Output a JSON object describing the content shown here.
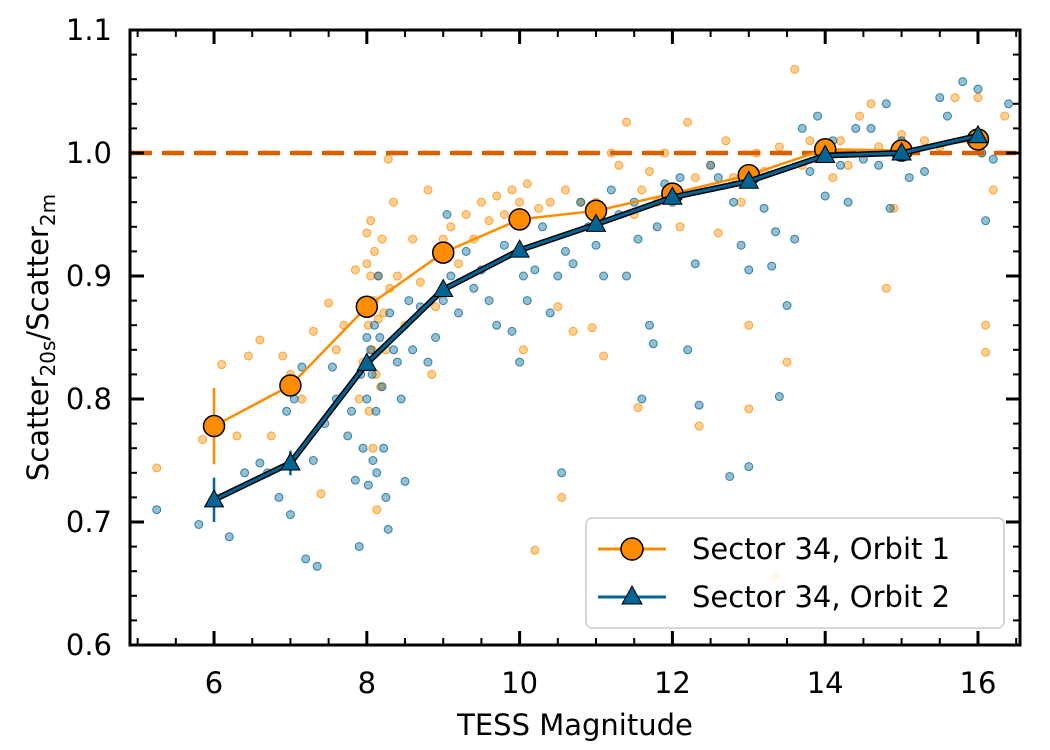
{
  "chart_data": {
    "type": "scatter",
    "xlabel": "TESS Magnitude",
    "ylabel": {
      "base1": "Scatter",
      "sub1": "20s",
      "sep": "/",
      "base2": "Scatter",
      "sub2": "2m"
    },
    "xlim": [
      4.9,
      16.55
    ],
    "ylim": [
      0.6,
      1.1
    ],
    "xticks": [
      6,
      8,
      10,
      12,
      14,
      16
    ],
    "yticks": [
      0.6,
      0.7,
      0.8,
      0.9,
      1.0,
      1.1
    ],
    "xtick_labels": [
      "6",
      "8",
      "10",
      "12",
      "14",
      "16"
    ],
    "ytick_labels": [
      "0.6",
      "0.7",
      "0.8",
      "0.9",
      "1.0",
      "1.1"
    ],
    "reference_line": {
      "y": 1.0,
      "style": "dashed",
      "color": "#d95f02"
    },
    "legend_position": "lower-right",
    "series": [
      {
        "name": "Sector 34, Orbit 1",
        "marker": "circle",
        "color": "#ff8c00",
        "x": [
          6,
          7,
          8,
          9,
          10,
          11,
          12,
          13,
          14,
          15,
          16
        ],
        "y": [
          0.778,
          0.811,
          0.875,
          0.919,
          0.946,
          0.953,
          0.967,
          0.982,
          1.003,
          1.002,
          1.011
        ],
        "yerr": [
          0.031,
          0.008,
          0.006,
          0.005,
          0.005,
          0.005,
          0.004,
          0.004,
          0.004,
          0.004,
          0.004
        ]
      },
      {
        "name": "Sector 34, Orbit 2",
        "marker": "triangle",
        "color": "#006494",
        "x": [
          6,
          7,
          8,
          9,
          10,
          11,
          12,
          13,
          14,
          15,
          16
        ],
        "y": [
          0.718,
          0.748,
          0.829,
          0.889,
          0.921,
          0.942,
          0.964,
          0.977,
          0.998,
          1.0,
          1.014
        ],
        "yerr": [
          0.018,
          0.01,
          0.006,
          0.005,
          0.005,
          0.005,
          0.004,
          0.004,
          0.004,
          0.004,
          0.004
        ]
      }
    ],
    "scatter_points": {
      "orbit1": [
        [
          5.25,
          0.744
        ],
        [
          5.85,
          0.767
        ],
        [
          6.1,
          0.828
        ],
        [
          6.3,
          0.77
        ],
        [
          6.45,
          0.835
        ],
        [
          6.6,
          0.848
        ],
        [
          6.75,
          0.77
        ],
        [
          6.9,
          0.835
        ],
        [
          7.0,
          0.82
        ],
        [
          7.15,
          0.8
        ],
        [
          7.3,
          0.855
        ],
        [
          7.4,
          0.723
        ],
        [
          7.5,
          0.878
        ],
        [
          7.6,
          0.84
        ],
        [
          7.7,
          0.86
        ],
        [
          7.85,
          0.905
        ],
        [
          7.9,
          0.8
        ],
        [
          7.95,
          0.83
        ],
        [
          8.0,
          0.935
        ],
        [
          8.0,
          0.91
        ],
        [
          8.02,
          0.86
        ],
        [
          8.03,
          0.79
        ],
        [
          8.05,
          0.945
        ],
        [
          8.05,
          0.9
        ],
        [
          8.07,
          0.84
        ],
        [
          8.08,
          0.76
        ],
        [
          8.1,
          0.92
        ],
        [
          8.1,
          0.88
        ],
        [
          8.12,
          0.82
        ],
        [
          8.13,
          0.71
        ],
        [
          8.15,
          0.9
        ],
        [
          8.15,
          0.865
        ],
        [
          8.18,
          0.81
        ],
        [
          8.2,
          0.93
        ],
        [
          8.22,
          0.87
        ],
        [
          8.25,
          0.84
        ],
        [
          8.28,
          0.995
        ],
        [
          8.3,
          0.89
        ],
        [
          8.35,
          0.96
        ],
        [
          8.4,
          0.9
        ],
        [
          8.5,
          0.86
        ],
        [
          8.6,
          0.93
        ],
        [
          8.7,
          0.895
        ],
        [
          8.8,
          0.97
        ],
        [
          8.85,
          0.82
        ],
        [
          8.9,
          0.875
        ],
        [
          9.0,
          0.93
        ],
        [
          9.1,
          0.94
        ],
        [
          9.2,
          0.91
        ],
        [
          9.3,
          0.95
        ],
        [
          9.4,
          0.93
        ],
        [
          9.5,
          0.96
        ],
        [
          9.6,
          0.945
        ],
        [
          9.7,
          0.965
        ],
        [
          9.8,
          0.95
        ],
        [
          9.9,
          0.97
        ],
        [
          10.0,
          0.96
        ],
        [
          10.05,
          0.84
        ],
        [
          10.1,
          0.975
        ],
        [
          10.2,
          0.677
        ],
        [
          10.25,
          0.955
        ],
        [
          10.4,
          0.96
        ],
        [
          10.5,
          0.875
        ],
        [
          10.55,
          0.72
        ],
        [
          10.6,
          0.97
        ],
        [
          10.7,
          0.855
        ],
        [
          10.8,
          0.96
        ],
        [
          10.95,
          0.858
        ],
        [
          11.0,
          0.96
        ],
        [
          11.1,
          0.835
        ],
        [
          11.2,
          1.0
        ],
        [
          11.3,
          0.99
        ],
        [
          11.4,
          1.025
        ],
        [
          11.5,
          0.95
        ],
        [
          11.55,
          0.793
        ],
        [
          11.6,
          0.97
        ],
        [
          11.7,
          0.985
        ],
        [
          11.8,
          0.96
        ],
        [
          11.9,
          1.0
        ],
        [
          12.0,
          0.97
        ],
        [
          12.1,
          0.94
        ],
        [
          12.2,
          1.025
        ],
        [
          12.3,
          0.98
        ],
        [
          12.35,
          0.778
        ],
        [
          12.5,
          0.99
        ],
        [
          12.6,
          0.935
        ],
        [
          12.7,
          1.01
        ],
        [
          12.8,
          0.98
        ],
        [
          12.9,
          0.96
        ],
        [
          13.0,
          0.792
        ],
        [
          13.0,
          0.86
        ],
        [
          13.1,
          1.0
        ],
        [
          13.2,
          0.985
        ],
        [
          13.35,
          0.655
        ],
        [
          13.4,
          1.005
        ],
        [
          13.5,
          0.83
        ],
        [
          13.6,
          1.068
        ],
        [
          13.7,
          0.99
        ],
        [
          13.8,
          1.01
        ],
        [
          14.0,
          1.0
        ],
        [
          14.1,
          0.98
        ],
        [
          14.2,
          1.01
        ],
        [
          14.3,
          0.99
        ],
        [
          14.45,
          1.03
        ],
        [
          14.5,
          1.0
        ],
        [
          14.6,
          1.04
        ],
        [
          14.7,
          1.005
        ],
        [
          14.8,
          0.89
        ],
        [
          14.9,
          0.955
        ],
        [
          15.0,
          1.015
        ],
        [
          15.1,
          1.0
        ],
        [
          15.3,
          1.01
        ],
        [
          15.5,
          1.005
        ],
        [
          15.7,
          1.045
        ],
        [
          15.9,
          1.01
        ],
        [
          16.0,
          1.045
        ],
        [
          16.05,
          1.0
        ],
        [
          16.1,
          0.86
        ],
        [
          16.1,
          0.838
        ],
        [
          16.2,
          0.97
        ],
        [
          16.35,
          1.03
        ]
      ],
      "orbit2": [
        [
          5.25,
          0.71
        ],
        [
          5.8,
          0.698
        ],
        [
          6.2,
          0.688
        ],
        [
          6.4,
          0.74
        ],
        [
          6.6,
          0.748
        ],
        [
          6.7,
          0.74
        ],
        [
          6.85,
          0.72
        ],
        [
          6.95,
          0.79
        ],
        [
          7.0,
          0.706
        ],
        [
          7.05,
          0.8
        ],
        [
          7.15,
          0.826
        ],
        [
          7.2,
          0.67
        ],
        [
          7.3,
          0.75
        ],
        [
          7.35,
          0.664
        ],
        [
          7.45,
          0.78
        ],
        [
          7.55,
          0.826
        ],
        [
          7.6,
          0.8
        ],
        [
          7.75,
          0.77
        ],
        [
          7.8,
          0.79
        ],
        [
          7.85,
          0.734
        ],
        [
          7.9,
          0.68
        ],
        [
          7.92,
          0.82
        ],
        [
          7.95,
          0.76
        ],
        [
          8.0,
          0.85
        ],
        [
          8.0,
          0.8
        ],
        [
          8.02,
          0.73
        ],
        [
          8.05,
          0.84
        ],
        [
          8.07,
          0.82
        ],
        [
          8.08,
          0.75
        ],
        [
          8.1,
          0.86
        ],
        [
          8.12,
          0.79
        ],
        [
          8.13,
          0.74
        ],
        [
          8.15,
          0.9
        ],
        [
          8.17,
          0.85
        ],
        [
          8.2,
          0.81
        ],
        [
          8.22,
          0.76
        ],
        [
          8.25,
          0.72
        ],
        [
          8.28,
          0.694
        ],
        [
          8.3,
          0.87
        ],
        [
          8.35,
          0.84
        ],
        [
          8.4,
          0.83
        ],
        [
          8.45,
          0.8
        ],
        [
          8.5,
          0.733
        ],
        [
          8.55,
          0.88
        ],
        [
          8.6,
          0.84
        ],
        [
          8.7,
          0.875
        ],
        [
          8.8,
          0.83
        ],
        [
          8.9,
          0.85
        ],
        [
          9.0,
          0.88
        ],
        [
          9.05,
          0.95
        ],
        [
          9.1,
          0.9
        ],
        [
          9.2,
          0.87
        ],
        [
          9.3,
          0.92
        ],
        [
          9.4,
          0.89
        ],
        [
          9.5,
          0.905
        ],
        [
          9.6,
          0.88
        ],
        [
          9.7,
          0.86
        ],
        [
          9.8,
          0.925
        ],
        [
          9.9,
          0.855
        ],
        [
          10.0,
          0.83
        ],
        [
          10.05,
          0.9
        ],
        [
          10.1,
          0.88
        ],
        [
          10.2,
          0.905
        ],
        [
          10.3,
          0.94
        ],
        [
          10.4,
          0.87
        ],
        [
          10.5,
          0.9
        ],
        [
          10.55,
          0.74
        ],
        [
          10.6,
          0.92
        ],
        [
          10.7,
          0.91
        ],
        [
          10.8,
          0.96
        ],
        [
          10.9,
          0.94
        ],
        [
          11.0,
          0.925
        ],
        [
          11.1,
          0.9
        ],
        [
          11.2,
          0.97
        ],
        [
          11.3,
          0.95
        ],
        [
          11.4,
          0.9
        ],
        [
          11.5,
          0.96
        ],
        [
          11.55,
          0.93
        ],
        [
          11.6,
          0.8
        ],
        [
          11.7,
          0.86
        ],
        [
          11.75,
          0.845
        ],
        [
          11.8,
          0.94
        ],
        [
          11.9,
          0.975
        ],
        [
          12.0,
          0.96
        ],
        [
          12.1,
          0.98
        ],
        [
          12.2,
          0.84
        ],
        [
          12.3,
          0.91
        ],
        [
          12.35,
          0.795
        ],
        [
          12.5,
          0.99
        ],
        [
          12.6,
          0.98
        ],
        [
          12.75,
          0.737
        ],
        [
          12.8,
          0.96
        ],
        [
          12.9,
          0.925
        ],
        [
          13.0,
          0.905
        ],
        [
          13.0,
          0.745
        ],
        [
          13.1,
          0.98
        ],
        [
          13.2,
          0.955
        ],
        [
          13.3,
          0.908
        ],
        [
          13.35,
          0.936
        ],
        [
          13.4,
          0.802
        ],
        [
          13.5,
          0.876
        ],
        [
          13.6,
          0.93
        ],
        [
          13.7,
          1.02
        ],
        [
          13.8,
          0.985
        ],
        [
          13.9,
          1.03
        ],
        [
          14.0,
          0.965
        ],
        [
          14.1,
          1.01
        ],
        [
          14.2,
          0.99
        ],
        [
          14.3,
          0.96
        ],
        [
          14.4,
          1.02
        ],
        [
          14.5,
          0.995
        ],
        [
          14.6,
          1.02
        ],
        [
          14.7,
          0.99
        ],
        [
          14.8,
          1.04
        ],
        [
          14.85,
          0.955
        ],
        [
          15.0,
          1.01
        ],
        [
          15.1,
          0.98
        ],
        [
          15.3,
          0.985
        ],
        [
          15.5,
          1.045
        ],
        [
          15.6,
          1.03
        ],
        [
          15.8,
          1.058
        ],
        [
          16.0,
          1.052
        ],
        [
          16.05,
          1.0
        ],
        [
          16.1,
          0.945
        ],
        [
          16.2,
          0.995
        ],
        [
          16.4,
          1.04
        ]
      ]
    }
  }
}
